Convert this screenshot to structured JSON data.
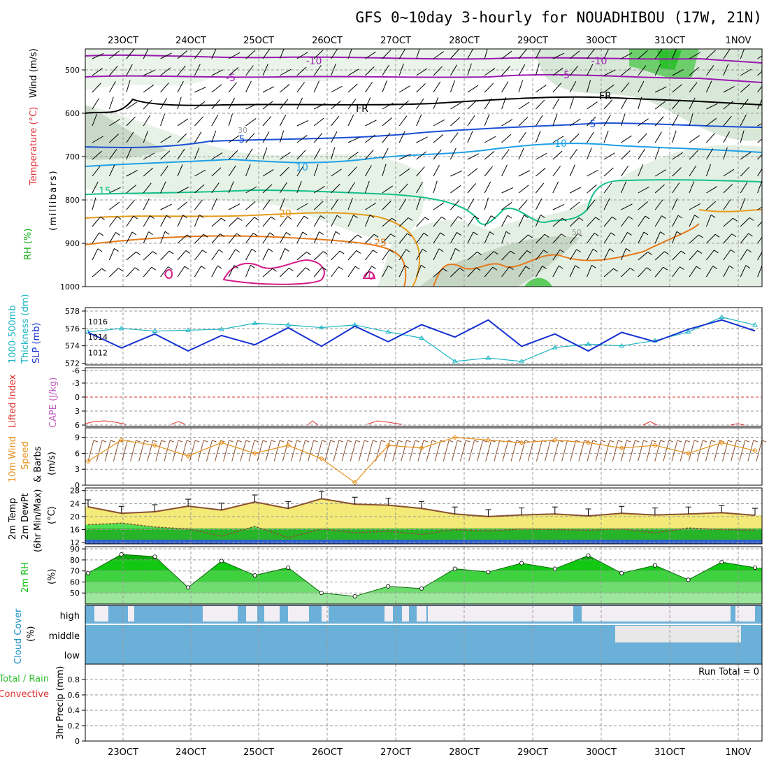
{
  "title": "GFS 0~10day 3-hourly for NOUADHIBOU (17W, 21N)",
  "date_labels": [
    "23OCT",
    "24OCT",
    "25OCT",
    "26OCT",
    "27OCT",
    "28OCT",
    "29OCT",
    "30OCT",
    "31OCT",
    "1NOV"
  ],
  "panels": {
    "upper": {
      "y_labels": [
        "Wind (m/s)",
        "Temperature (°C)",
        "RH (%)",
        "(millibars)"
      ],
      "y_ticks": [
        500,
        600,
        700,
        800,
        900,
        1000
      ],
      "contour_labels": [
        "-10",
        "-5",
        "FR",
        "5",
        "10",
        "15",
        "20",
        "25",
        "0",
        "30",
        "50",
        "-10",
        "-5",
        "FR",
        "5",
        "10"
      ],
      "colors": {
        "wind": "#000000",
        "temperature": "#e0303a",
        "rh": "#1ab01a",
        "isotherm_neg": "#9a1ab0",
        "isotherm_5": "#1a4fd6",
        "isotherm_10": "#1ea0e6",
        "isotherm_15": "#14c08a",
        "isotherm_20": "#e69a1a",
        "isotherm_25": "#e67a1a",
        "isotherm_0": "#d61a8a"
      }
    },
    "thickness": {
      "y_labels": [
        "1000-500mb",
        "Thickness (dm)",
        "SLP (mb)"
      ],
      "thickness_ticks": [
        572,
        574,
        576,
        578
      ],
      "slp_ticks": [
        1012,
        1014,
        1016
      ],
      "colors": {
        "thickness": "#19b4c4",
        "slp": "#1632d0"
      }
    },
    "stability": {
      "y_labels": [
        "Lifted Index",
        "CAPE (J/kg)"
      ],
      "y_ticks": [
        "-6",
        "-3",
        "0",
        "3",
        "6"
      ],
      "colors": {
        "lifted_index": "#e03030",
        "cape": "#c060c0"
      }
    },
    "wind10m": {
      "y_labels": [
        "10m Wind",
        "Speed",
        "& Barbs",
        "(m/s)"
      ],
      "y_ticks": [
        0,
        3,
        6,
        9
      ],
      "colors": {
        "speed": "#e6901a",
        "barbs": "#8a5030"
      }
    },
    "temp2m": {
      "y_labels": [
        "2m Temp",
        "2m DewPt",
        "(6hr Min/Max)",
        "(°C)"
      ],
      "y_ticks": [
        12,
        16,
        20,
        24,
        28
      ],
      "colors": {
        "temp": "#f0e060",
        "dewpt": "#30c030",
        "line": "#8a5030"
      }
    },
    "rh2m": {
      "y_labels": [
        "2m RH",
        "(%)"
      ],
      "y_ticks": [
        50,
        60,
        70,
        80,
        90
      ],
      "colors": {
        "rh": "#10c010"
      }
    },
    "cloud": {
      "y_labels": [
        "Cloud Cover",
        "(%)"
      ],
      "levels": [
        "high",
        "middle",
        "low"
      ],
      "colors": {
        "cover": "#6ab0d8"
      }
    },
    "precip": {
      "y_labels": [
        "Total / Rain",
        "Convective",
        "3hr Precip (mm)"
      ],
      "y_ticks": [
        "0",
        "0.2",
        "0.4",
        "0.6",
        "0.8"
      ],
      "run_total": "Run Total = 0",
      "colors": {
        "total": "#30c030",
        "convective": "#e03030"
      }
    }
  },
  "chart_data": [
    {
      "type": "line",
      "title": "1000-500mb Thickness (dm)",
      "x": [
        "22OCT 18Z",
        "23OCT 00Z",
        "23OCT 12Z",
        "24OCT 00Z",
        "24OCT 12Z",
        "25OCT 00Z",
        "25OCT 12Z",
        "26OCT 00Z",
        "26OCT 12Z",
        "27OCT 00Z",
        "27OCT 12Z",
        "28OCT 00Z",
        "28OCT 12Z",
        "29OCT 00Z",
        "29OCT 12Z",
        "30OCT 00Z",
        "30OCT 12Z",
        "31OCT 00Z",
        "31OCT 12Z",
        "1NOV 00Z",
        "1NOV 06Z"
      ],
      "series": [
        {
          "name": "1000-500mb Thickness (dm)",
          "values": [
            575.6,
            576.0,
            575.7,
            575.8,
            575.9,
            576.6,
            576.4,
            576.1,
            576.4,
            575.6,
            574.9,
            572.2,
            572.6,
            572.2,
            573.8,
            574.2,
            574.0,
            574.6,
            575.6,
            577.3,
            576.4
          ]
        }
      ],
      "ylim": [
        572,
        578
      ]
    },
    {
      "type": "line",
      "title": "SLP (mb)",
      "x": [
        "22OCT 18Z",
        "23OCT 00Z",
        "23OCT 12Z",
        "24OCT 00Z",
        "24OCT 12Z",
        "25OCT 00Z",
        "25OCT 12Z",
        "26OCT 00Z",
        "26OCT 12Z",
        "27OCT 00Z",
        "27OCT 12Z",
        "28OCT 00Z",
        "28OCT 12Z",
        "29OCT 00Z",
        "29OCT 12Z",
        "30OCT 00Z",
        "30OCT 12Z",
        "31OCT 00Z",
        "31OCT 12Z",
        "1NOV 00Z",
        "1NOV 06Z"
      ],
      "series": [
        {
          "name": "SLP (mb)",
          "values": [
            1014.6,
            1012.6,
            1014.4,
            1012.2,
            1014.2,
            1013.0,
            1015.2,
            1012.8,
            1015.4,
            1013.4,
            1015.6,
            1014.0,
            1016.2,
            1012.8,
            1014.4,
            1012.2,
            1014.6,
            1013.4,
            1015.0,
            1016.2,
            1014.8
          ]
        }
      ],
      "ylim": [
        1011,
        1017.5
      ]
    },
    {
      "type": "line",
      "title": "10m Wind Speed (m/s)",
      "x": [
        "22OCT 18Z",
        "23OCT 00Z",
        "23OCT 12Z",
        "24OCT 00Z",
        "24OCT 12Z",
        "25OCT 00Z",
        "25OCT 12Z",
        "26OCT 00Z",
        "26OCT 12Z",
        "27OCT 00Z",
        "27OCT 12Z",
        "28OCT 00Z",
        "28OCT 12Z",
        "29OCT 00Z",
        "29OCT 12Z",
        "30OCT 00Z",
        "30OCT 12Z",
        "31OCT 00Z",
        "31OCT 12Z",
        "1NOV 00Z",
        "1NOV 06Z"
      ],
      "series": [
        {
          "name": "10m Wind Speed",
          "values": [
            4.5,
            8.5,
            7.5,
            5.5,
            8.0,
            6.0,
            7.5,
            5.0,
            0.5,
            7.5,
            7.0,
            9.0,
            8.5,
            8.0,
            8.5,
            8.0,
            7.0,
            7.5,
            6.0,
            8.0,
            6.5
          ]
        }
      ],
      "ylim": [
        0,
        10.5
      ]
    },
    {
      "type": "area",
      "title": "2m Temp / DewPt (°C)",
      "x": [
        "22OCT 18Z",
        "23OCT 00Z",
        "23OCT 12Z",
        "24OCT 00Z",
        "24OCT 12Z",
        "25OCT 00Z",
        "25OCT 12Z",
        "26OCT 00Z",
        "26OCT 12Z",
        "27OCT 00Z",
        "27OCT 12Z",
        "28OCT 00Z",
        "28OCT 12Z",
        "29OCT 00Z",
        "29OCT 12Z",
        "30OCT 00Z",
        "30OCT 12Z",
        "31OCT 00Z",
        "31OCT 12Z",
        "1NOV 00Z",
        "1NOV 06Z"
      ],
      "series": [
        {
          "name": "2m Temp",
          "values": [
            23.0,
            21.0,
            21.5,
            23.2,
            22.0,
            24.5,
            22.5,
            25.5,
            23.8,
            23.5,
            22.5,
            20.8,
            20.0,
            20.5,
            20.8,
            20.2,
            21.0,
            20.5,
            20.8,
            21.2,
            20.4
          ]
        },
        {
          "name": "2m DewPt",
          "values": [
            17.5,
            18.0,
            16.8,
            16.2,
            14.0,
            17.0,
            13.5,
            16.2,
            15.0,
            15.5,
            14.5,
            16.0,
            15.5,
            16.2,
            16.0,
            15.8,
            16.2,
            15.0,
            16.5,
            16.0,
            15.8
          ]
        }
      ],
      "ylim": [
        12,
        29
      ]
    },
    {
      "type": "area",
      "title": "2m RH (%)",
      "x": [
        "22OCT 18Z",
        "23OCT 00Z",
        "23OCT 12Z",
        "24OCT 00Z",
        "24OCT 12Z",
        "25OCT 00Z",
        "25OCT 12Z",
        "26OCT 00Z",
        "26OCT 12Z",
        "27OCT 00Z",
        "27OCT 12Z",
        "28OCT 00Z",
        "28OCT 12Z",
        "29OCT 00Z",
        "29OCT 12Z",
        "30OCT 00Z",
        "30OCT 12Z",
        "31OCT 00Z",
        "31OCT 12Z",
        "1NOV 00Z",
        "1NOV 06Z"
      ],
      "series": [
        {
          "name": "2m RH",
          "values": [
            68,
            85,
            83,
            55,
            79,
            66,
            73,
            50,
            47,
            56,
            54,
            72,
            69,
            77,
            72,
            84,
            68,
            75,
            62,
            78,
            73
          ]
        }
      ],
      "ylim": [
        40,
        90
      ]
    },
    {
      "type": "bar",
      "title": "3hr Precip (mm)",
      "categories": [
        "23OCT",
        "24OCT",
        "25OCT",
        "26OCT",
        "27OCT",
        "28OCT",
        "29OCT",
        "30OCT",
        "31OCT",
        "1NOV"
      ],
      "values": [
        0,
        0,
        0,
        0,
        0,
        0,
        0,
        0,
        0,
        0
      ],
      "ylim": [
        0,
        1
      ]
    }
  ]
}
